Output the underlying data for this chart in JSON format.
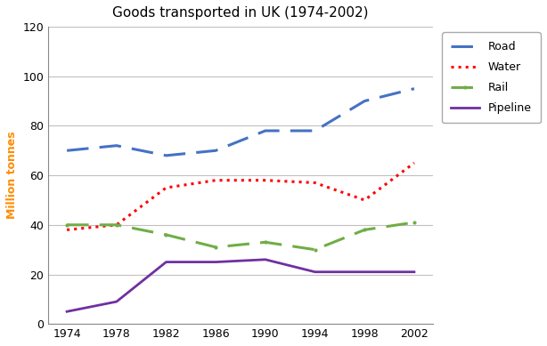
{
  "title": "Goods transported in UK (1974-2002)",
  "ylabel": "Million tonnes",
  "years": [
    1974,
    1978,
    1982,
    1986,
    1990,
    1994,
    1998,
    2002
  ],
  "road": [
    70,
    72,
    68,
    70,
    78,
    78,
    90,
    95
  ],
  "water": [
    38,
    40,
    55,
    58,
    58,
    57,
    50,
    65
  ],
  "rail": [
    40,
    40,
    36,
    31,
    33,
    30,
    38,
    41
  ],
  "pipeline": [
    5,
    9,
    25,
    25,
    26,
    21,
    21,
    21
  ],
  "road_color": "#4472C4",
  "water_color": "#FF0000",
  "rail_color": "#70AD47",
  "pipeline_color": "#7030A0",
  "ylabel_color": "#FF8C00",
  "ylim": [
    0,
    120
  ],
  "yticks": [
    0,
    20,
    40,
    60,
    80,
    100,
    120
  ],
  "title_fontsize": 11,
  "axis_label_fontsize": 9,
  "tick_fontsize": 9,
  "legend_labels": [
    "Road",
    "Water",
    "Rail",
    "Pipeline"
  ],
  "background_color": "#FFFFFF",
  "plot_bg_color": "#FFFFFF",
  "grid_color": "#C0C0C0"
}
